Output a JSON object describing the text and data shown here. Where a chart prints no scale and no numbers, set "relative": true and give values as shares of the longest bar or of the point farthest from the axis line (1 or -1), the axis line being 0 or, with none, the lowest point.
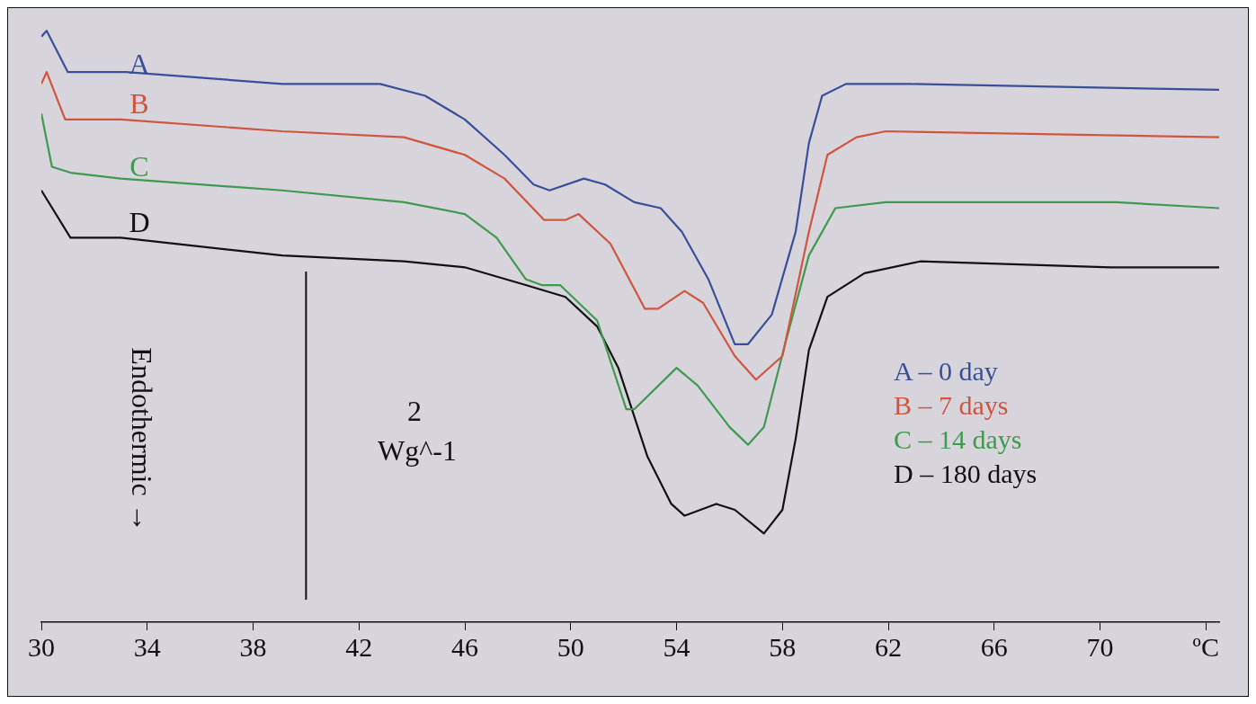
{
  "chart_data": {
    "type": "line",
    "relative": true,
    "xlim": [
      30,
      74.5
    ],
    "xticks": [
      30,
      34,
      38,
      42,
      46,
      50,
      54,
      58,
      62,
      66,
      70,
      {
        "value": 74,
        "label": "ºC"
      }
    ],
    "legend": "right",
    "marker": "none",
    "line_style": "solid",
    "grid": false,
    "tick_labels": "x",
    "series": [
      {
        "name": "A – 0 day",
        "color": "#3a4f9a",
        "x": [
          30,
          30.2,
          31,
          33.2,
          39.1,
          42.8,
          44.5,
          46,
          47.5,
          48.6,
          49.2,
          50.5,
          51.3,
          52.4,
          53.4,
          54.2,
          55.2,
          56.2,
          56.7,
          57.6,
          58.5,
          59,
          59.5,
          60.4,
          62.8,
          74.5
        ],
        "values": [
          0.99,
          1,
          0.93,
          0.93,
          0.91,
          0.91,
          0.89,
          0.85,
          0.79,
          0.74,
          0.73,
          0.75,
          0.74,
          0.71,
          0.7,
          0.66,
          0.58,
          0.47,
          0.47,
          0.52,
          0.66,
          0.81,
          0.89,
          0.91,
          0.91,
          0.9
        ]
      },
      {
        "name": "B – 7 days",
        "color": "#d0553f",
        "x": [
          30,
          30.2,
          30.9,
          33,
          39.1,
          43.7,
          46,
          47.5,
          49,
          49.8,
          50.3,
          51.5,
          52.8,
          53.3,
          54.3,
          55,
          56.2,
          57,
          58,
          59,
          59.7,
          60.8,
          61.9,
          74.5
        ],
        "values": [
          0.91,
          0.93,
          0.85,
          0.85,
          0.83,
          0.82,
          0.79,
          0.75,
          0.68,
          0.68,
          0.69,
          0.64,
          0.53,
          0.53,
          0.56,
          0.54,
          0.45,
          0.41,
          0.45,
          0.66,
          0.79,
          0.82,
          0.83,
          0.82
        ]
      },
      {
        "name": "C – 14 days",
        "color": "#3f9a4f",
        "x": [
          30,
          30.4,
          31.1,
          33,
          39.1,
          43.7,
          46,
          47.2,
          48.3,
          48.9,
          49.6,
          51,
          52.1,
          52.4,
          54,
          54.8,
          56,
          56.7,
          57.3,
          58.1,
          59,
          60,
          61.9,
          66.3,
          70.6,
          74.5
        ],
        "values": [
          0.86,
          0.77,
          0.76,
          0.75,
          0.73,
          0.71,
          0.69,
          0.65,
          0.58,
          0.57,
          0.57,
          0.51,
          0.36,
          0.36,
          0.43,
          0.4,
          0.33,
          0.3,
          0.33,
          0.47,
          0.62,
          0.7,
          0.71,
          0.71,
          0.71,
          0.7
        ]
      },
      {
        "name": "D – 180 days",
        "color": "#111111",
        "x": [
          30,
          31.1,
          33,
          39.1,
          43.7,
          46,
          48.3,
          49.8,
          51,
          51.8,
          52.9,
          53.8,
          54.3,
          55.5,
          56.2,
          57.3,
          58,
          58.5,
          59,
          59.7,
          61.1,
          63.2,
          70.4,
          74.5
        ],
        "values": [
          0.73,
          0.65,
          0.65,
          0.62,
          0.61,
          0.6,
          0.57,
          0.55,
          0.5,
          0.43,
          0.28,
          0.2,
          0.18,
          0.2,
          0.19,
          0.15,
          0.19,
          0.31,
          0.46,
          0.55,
          0.59,
          0.61,
          0.6,
          0.6
        ]
      }
    ],
    "ref_lines": [
      {
        "axis": "x",
        "value": 40,
        "color": "#111111"
      }
    ],
    "annotations": [
      "A",
      "B",
      "C",
      "D",
      "Endothermic →",
      "2",
      "Wg^-1"
    ]
  }
}
